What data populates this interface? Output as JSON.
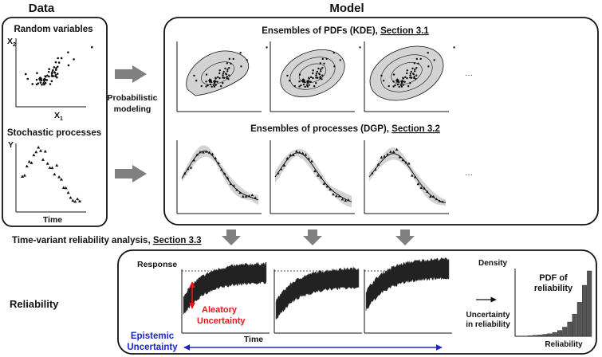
{
  "headers": {
    "data": "Data",
    "model": "Model"
  },
  "data_panel": {
    "random_variables": "Random variables",
    "x2_label": "X",
    "x2_sub": "2",
    "x1_label": "X",
    "x1_sub": "1",
    "stochastic_processes": "Stochastic processes",
    "y_label": "Y",
    "time_label": "Time"
  },
  "probabilistic_modeling": {
    "line1": "Probabilistic",
    "line2": "modeling"
  },
  "model_panel": {
    "kde_prefix": "Ensembles of PDFs (KDE), ",
    "kde_link": "Section 3.1",
    "dgp_prefix": "Ensembles of processes (DGP), ",
    "dgp_link": "Section 3.2",
    "ellipsis": "···"
  },
  "reliability_analysis": {
    "prefix": "Time-variant reliability analysis, ",
    "link": "Section 3.3"
  },
  "reliability_panel": {
    "row_label": "Reliability",
    "response": "Response",
    "time": "Time",
    "aleatory_line1": "Aleatory",
    "aleatory_line2": "Uncertainty",
    "epistemic_line1": "Epistemic",
    "epistemic_line2": "Uncertainty",
    "uncertainty_line1": "Uncertainty",
    "uncertainty_line2": "in reliability",
    "density": "Density",
    "pdf_line1": "PDF of",
    "pdf_line2": "reliability",
    "reliability_axis": "Reliability"
  },
  "colors": {
    "aleatory": "#e8141b",
    "epistemic": "#1a25d6",
    "gray_arrow": "#808080",
    "band": "#d3d3d3"
  },
  "histogram": {
    "values": [
      0.01,
      0.015,
      0.02,
      0.03,
      0.04,
      0.06,
      0.09,
      0.14,
      0.22,
      0.34,
      0.52,
      0.78,
      1.0
    ]
  }
}
